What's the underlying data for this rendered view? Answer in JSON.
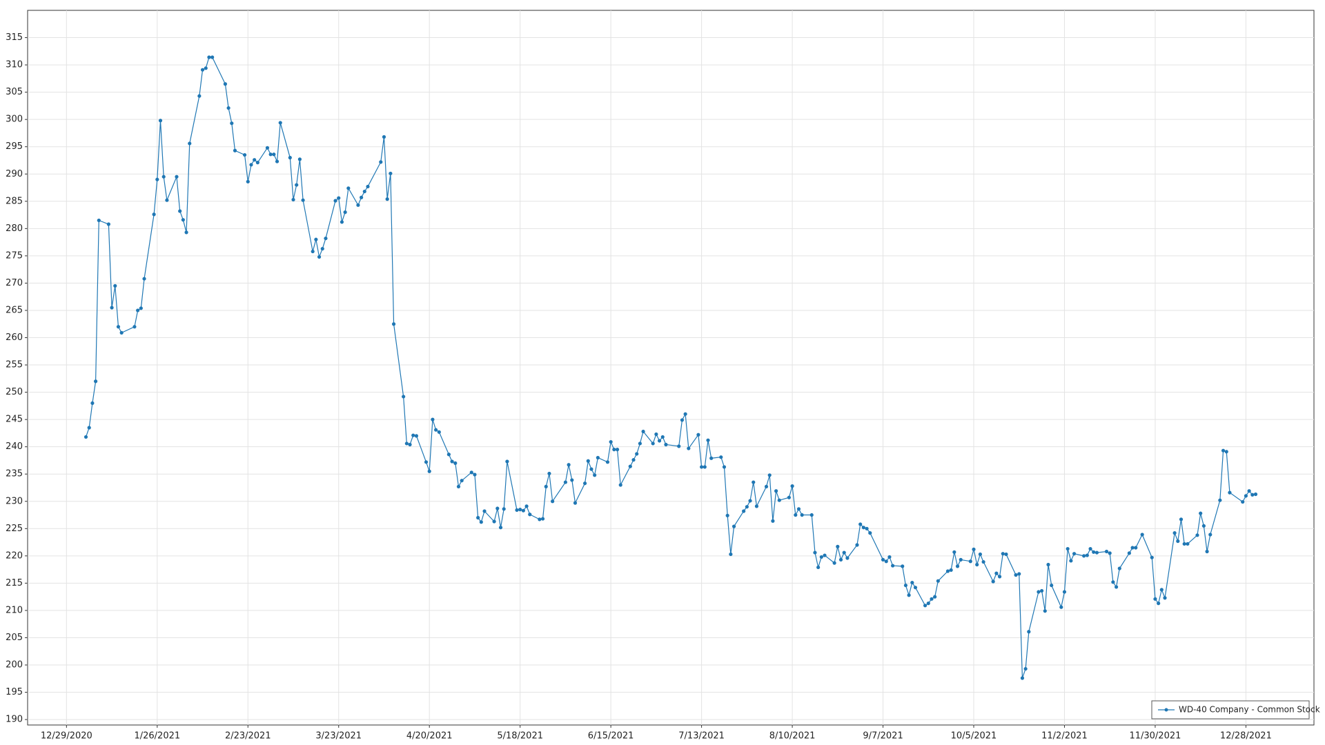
{
  "chart_data": {
    "type": "line",
    "xlim": [
      "12/17/2020",
      "1/18/2022"
    ],
    "xticks": [
      "12/29/2020",
      "1/26/2021",
      "2/23/2021",
      "3/23/2021",
      "4/20/2021",
      "5/18/2021",
      "6/15/2021",
      "7/13/2021",
      "8/10/2021",
      "9/7/2021",
      "10/5/2021",
      "11/2/2021",
      "11/30/2021",
      "12/28/2021"
    ],
    "ylim": [
      189,
      320
    ],
    "yticks": [
      190,
      195,
      200,
      205,
      210,
      215,
      220,
      225,
      230,
      235,
      240,
      245,
      250,
      255,
      260,
      265,
      270,
      275,
      280,
      285,
      290,
      295,
      300,
      305,
      310,
      315
    ],
    "grid": true,
    "legend": "lower right",
    "x": [
      "1/4/2021",
      "1/5/2021",
      "1/6/2021",
      "1/7/2021",
      "1/8/2021",
      "1/11/2021",
      "1/12/2021",
      "1/13/2021",
      "1/14/2021",
      "1/15/2021",
      "1/19/2021",
      "1/20/2021",
      "1/21/2021",
      "1/22/2021",
      "1/25/2021",
      "1/26/2021",
      "1/27/2021",
      "1/28/2021",
      "1/29/2021",
      "2/1/2021",
      "2/2/2021",
      "2/3/2021",
      "2/4/2021",
      "2/5/2021",
      "2/8/2021",
      "2/9/2021",
      "2/10/2021",
      "2/11/2021",
      "2/12/2021",
      "2/16/2021",
      "2/17/2021",
      "2/18/2021",
      "2/19/2021",
      "2/22/2021",
      "2/23/2021",
      "2/24/2021",
      "2/25/2021",
      "2/26/2021",
      "3/1/2021",
      "3/2/2021",
      "3/3/2021",
      "3/4/2021",
      "3/5/2021",
      "3/8/2021",
      "3/9/2021",
      "3/10/2021",
      "3/11/2021",
      "3/12/2021",
      "3/15/2021",
      "3/16/2021",
      "3/17/2021",
      "3/18/2021",
      "3/19/2021",
      "3/22/2021",
      "3/23/2021",
      "3/24/2021",
      "3/25/2021",
      "3/26/2021",
      "3/29/2021",
      "3/30/2021",
      "3/31/2021",
      "4/1/2021",
      "4/5/2021",
      "4/6/2021",
      "4/7/2021",
      "4/8/2021",
      "4/9/2021",
      "4/12/2021",
      "4/13/2021",
      "4/14/2021",
      "4/15/2021",
      "4/16/2021",
      "4/19/2021",
      "4/20/2021",
      "4/21/2021",
      "4/22/2021",
      "4/23/2021",
      "4/26/2021",
      "4/27/2021",
      "4/28/2021",
      "4/29/2021",
      "4/30/2021",
      "5/3/2021",
      "5/4/2021",
      "5/5/2021",
      "5/6/2021",
      "5/7/2021",
      "5/10/2021",
      "5/11/2021",
      "5/12/2021",
      "5/13/2021",
      "5/14/2021",
      "5/17/2021",
      "5/18/2021",
      "5/19/2021",
      "5/20/2021",
      "5/21/2021",
      "5/24/2021",
      "5/25/2021",
      "5/26/2021",
      "5/27/2021",
      "5/28/2021",
      "6/1/2021",
      "6/2/2021",
      "6/3/2021",
      "6/4/2021",
      "6/7/2021",
      "6/8/2021",
      "6/9/2021",
      "6/10/2021",
      "6/11/2021",
      "6/14/2021",
      "6/15/2021",
      "6/16/2021",
      "6/17/2021",
      "6/18/2021",
      "6/21/2021",
      "6/22/2021",
      "6/23/2021",
      "6/24/2021",
      "6/25/2021",
      "6/28/2021",
      "6/29/2021",
      "6/30/2021",
      "7/1/2021",
      "7/2/2021",
      "7/6/2021",
      "7/7/2021",
      "7/8/2021",
      "7/9/2021",
      "7/12/2021",
      "7/13/2021",
      "7/14/2021",
      "7/15/2021",
      "7/16/2021",
      "7/19/2021",
      "7/20/2021",
      "7/21/2021",
      "7/22/2021",
      "7/23/2021",
      "7/26/2021",
      "7/27/2021",
      "7/28/2021",
      "7/29/2021",
      "7/30/2021",
      "8/2/2021",
      "8/3/2021",
      "8/4/2021",
      "8/5/2021",
      "8/6/2021",
      "8/9/2021",
      "8/10/2021",
      "8/11/2021",
      "8/12/2021",
      "8/13/2021",
      "8/16/2021",
      "8/17/2021",
      "8/18/2021",
      "8/19/2021",
      "8/20/2021",
      "8/23/2021",
      "8/24/2021",
      "8/25/2021",
      "8/26/2021",
      "8/27/2021",
      "8/30/2021",
      "8/31/2021",
      "9/1/2021",
      "9/2/2021",
      "9/3/2021",
      "9/7/2021",
      "9/8/2021",
      "9/9/2021",
      "9/10/2021",
      "9/13/2021",
      "9/14/2021",
      "9/15/2021",
      "9/16/2021",
      "9/17/2021",
      "9/20/2021",
      "9/21/2021",
      "9/22/2021",
      "9/23/2021",
      "9/24/2021",
      "9/27/2021",
      "9/28/2021",
      "9/29/2021",
      "9/30/2021",
      "10/1/2021",
      "10/4/2021",
      "10/5/2021",
      "10/6/2021",
      "10/7/2021",
      "10/8/2021",
      "10/11/2021",
      "10/12/2021",
      "10/13/2021",
      "10/14/2021",
      "10/15/2021",
      "10/18/2021",
      "10/19/2021",
      "10/20/2021",
      "10/21/2021",
      "10/22/2021",
      "10/25/2021",
      "10/26/2021",
      "10/27/2021",
      "10/28/2021",
      "10/29/2021",
      "11/1/2021",
      "11/2/2021",
      "11/3/2021",
      "11/4/2021",
      "11/5/2021",
      "11/8/2021",
      "11/9/2021",
      "11/10/2021",
      "11/11/2021",
      "11/12/2021",
      "11/15/2021",
      "11/16/2021",
      "11/17/2021",
      "11/18/2021",
      "11/19/2021",
      "11/22/2021",
      "11/23/2021",
      "11/24/2021",
      "11/26/2021",
      "11/29/2021",
      "11/30/2021",
      "12/1/2021",
      "12/2/2021",
      "12/3/2021",
      "12/6/2021",
      "12/7/2021",
      "12/8/2021",
      "12/9/2021",
      "12/10/2021",
      "12/13/2021",
      "12/14/2021",
      "12/15/2021",
      "12/16/2021",
      "12/17/2021",
      "12/20/2021",
      "12/21/2021",
      "12/22/2021",
      "12/23/2021",
      "12/27/2021",
      "12/28/2021",
      "12/29/2021",
      "12/30/2021",
      "12/31/2021"
    ],
    "series": [
      {
        "name": "WD-40 Company - Common Stock",
        "color": "#1f77b4",
        "values": [
          241.8,
          243.5,
          248,
          252,
          281.5,
          280.8,
          265.5,
          269.5,
          262,
          260.9,
          262,
          265,
          265.4,
          270.8,
          282.6,
          289,
          299.8,
          289.5,
          285.2,
          289.5,
          283.2,
          281.6,
          279.3,
          295.6,
          304.3,
          309.1,
          309.4,
          311.4,
          311.4,
          306.5,
          302.1,
          299.3,
          294.3,
          293.5,
          288.6,
          291.7,
          292.6,
          292.1,
          294.8,
          293.6,
          293.6,
          292.3,
          299.4,
          293,
          285.3,
          288,
          292.7,
          285.2,
          275.8,
          278,
          274.8,
          276.3,
          278.2,
          285.1,
          285.6,
          281.2,
          283,
          287.4,
          284.3,
          285.7,
          286.8,
          287.7,
          292.2,
          296.8,
          285.4,
          290.1,
          262.5,
          249.2,
          240.6,
          240.4,
          242.1,
          242,
          237.2,
          235.5,
          245,
          243.1,
          242.7,
          238.6,
          237.3,
          237,
          232.7,
          233.8,
          235.3,
          234.9,
          227,
          226.2,
          228.2,
          226.3,
          228.7,
          225.2,
          228.6,
          237.3,
          228.4,
          228.5,
          228.3,
          229.1,
          227.6,
          226.7,
          226.8,
          232.7,
          235.1,
          230,
          233.5,
          236.7,
          233.9,
          229.7,
          233.3,
          237.4,
          235.9,
          234.8,
          238,
          237.2,
          240.9,
          239.5,
          239.5,
          233,
          236.4,
          237.6,
          238.7,
          240.6,
          242.8,
          240.6,
          242.3,
          241.1,
          241.8,
          240.4,
          240.1,
          244.9,
          246,
          239.7,
          242.2,
          236.3,
          236.3,
          241.2,
          237.9,
          238.1,
          236.3,
          227.4,
          220.3,
          225.4,
          228.2,
          229,
          230.1,
          233.5,
          229.1,
          232.7,
          234.8,
          226.4,
          231.9,
          230.2,
          230.7,
          232.8,
          227.5,
          228.6,
          227.5,
          227.5,
          220.6,
          217.9,
          219.8,
          220.1,
          218.7,
          221.7,
          219.3,
          220.6,
          219.6,
          222,
          225.8,
          225.2,
          225,
          224.2,
          219.3,
          219,
          219.8,
          218.2,
          218.1,
          214.6,
          212.8,
          215.1,
          214.2,
          210.9,
          211.3,
          212.1,
          212.5,
          215.4,
          217.2,
          217.4,
          220.7,
          218.1,
          219.3,
          219,
          221.2,
          218.4,
          220.3,
          218.9,
          215.3,
          216.8,
          216.2,
          220.4,
          220.3,
          216.5,
          216.7,
          197.6,
          199.3,
          206.1,
          213.4,
          213.6,
          209.9,
          218.4,
          214.6,
          210.6,
          213.4,
          221.3,
          219.1,
          220.4,
          220,
          220.1,
          221.3,
          220.7,
          220.6,
          220.8,
          220.5,
          215.2,
          214.3,
          217.7,
          220.5,
          221.5,
          221.5,
          223.9,
          219.7,
          212.1,
          211.3,
          213.8,
          212.3,
          224.2,
          222.7,
          226.7,
          222.2,
          222.2,
          223.8,
          227.8,
          225.5,
          220.8,
          223.9,
          230.2,
          239.3,
          239.1,
          231.6,
          229.9,
          231,
          231.9,
          231.2,
          231.3
        ]
      }
    ]
  }
}
